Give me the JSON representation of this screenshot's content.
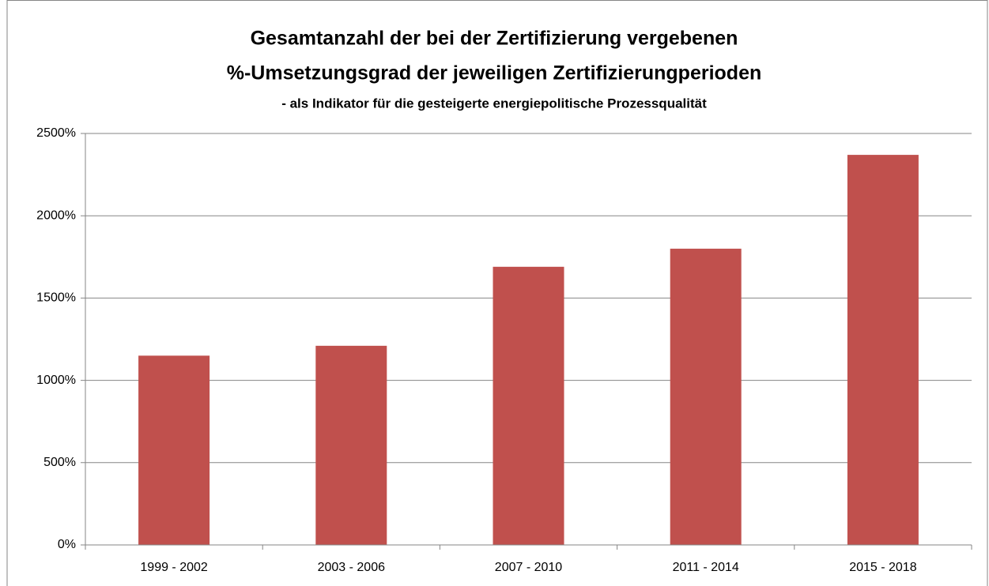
{
  "chart_data": {
    "type": "bar",
    "title": [
      "Gesamtanzahl der bei der Zertifizierung vergebenen",
      "%-Umsetzungsgrad der jeweiligen Zertifizierungperioden"
    ],
    "subtitle": "- als Indikator für die gesteigerte energiepolitische Prozessqualität",
    "categories": [
      "1999 - 2002",
      "2003 - 2006",
      "2007 - 2010",
      "2011 - 2014",
      "2015 - 2018"
    ],
    "values": [
      1150,
      1210,
      1690,
      1800,
      2370
    ],
    "color": "#c0504d",
    "ylim": [
      0,
      2500
    ],
    "yticks": [
      {
        "value": 0,
        "label": "0%"
      },
      {
        "value": 500,
        "label": "500%"
      },
      {
        "value": 1000,
        "label": "1000%"
      },
      {
        "value": 1500,
        "label": "1500%"
      },
      {
        "value": 2000,
        "label": "2000%"
      },
      {
        "value": 2500,
        "label": "2500%"
      }
    ],
    "grid": true
  }
}
